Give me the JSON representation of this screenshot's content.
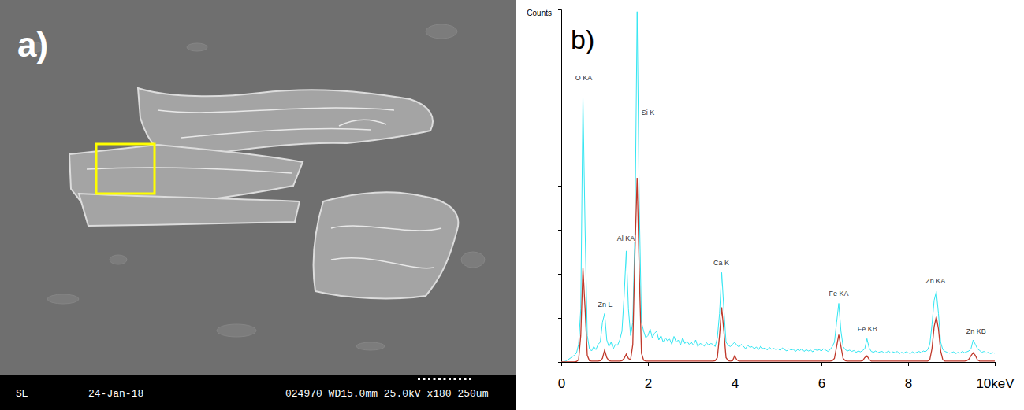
{
  "image_panel": {
    "panel_label": "a)",
    "info_bar": [
      "SE",
      "24-Jan-18",
      "024970 WD15.0mm 25.0kV x180 250um"
    ]
  },
  "chart_data": {
    "type": "line",
    "panel_label": "b)",
    "y_label": "Counts",
    "xlim": [
      0,
      10
    ],
    "ylim": [
      0,
      800
    ],
    "xticks": [
      0,
      2,
      4,
      6,
      8,
      {
        "value": 10,
        "label": "10keV"
      }
    ],
    "yticks": [
      0,
      100,
      200,
      300,
      400,
      500,
      600,
      700,
      800
    ],
    "tick_labels": "x",
    "grid": false,
    "x": [
      0,
      0.05,
      0.1,
      0.15,
      0.2,
      0.25,
      0.3,
      0.35,
      0.4,
      0.45,
      0.5,
      0.55,
      0.6,
      0.65,
      0.7,
      0.75,
      0.8,
      0.85,
      0.9,
      0.95,
      1,
      1.05,
      1.1,
      1.15,
      1.2,
      1.25,
      1.3,
      1.35,
      1.4,
      1.45,
      1.5,
      1.55,
      1.6,
      1.65,
      1.7,
      1.75,
      1.8,
      1.85,
      1.9,
      1.95,
      2,
      2.05,
      2.1,
      2.15,
      2.2,
      2.25,
      2.3,
      2.35,
      2.4,
      2.45,
      2.5,
      2.55,
      2.6,
      2.65,
      2.7,
      2.75,
      2.8,
      2.85,
      2.9,
      2.95,
      3,
      3.05,
      3.1,
      3.15,
      3.2,
      3.25,
      3.3,
      3.35,
      3.4,
      3.45,
      3.5,
      3.55,
      3.6,
      3.65,
      3.7,
      3.75,
      3.8,
      3.85,
      3.9,
      3.95,
      4,
      4.05,
      4.1,
      4.15,
      4.2,
      4.25,
      4.3,
      4.35,
      4.4,
      4.45,
      4.5,
      4.55,
      4.6,
      4.65,
      4.7,
      4.75,
      4.8,
      4.85,
      4.9,
      4.95,
      5,
      5.05,
      5.1,
      5.15,
      5.2,
      5.25,
      5.3,
      5.35,
      5.4,
      5.45,
      5.5,
      5.55,
      5.6,
      5.65,
      5.7,
      5.75,
      5.8,
      5.85,
      5.9,
      5.95,
      6,
      6.05,
      6.1,
      6.15,
      6.2,
      6.25,
      6.3,
      6.35,
      6.4,
      6.45,
      6.5,
      6.55,
      6.6,
      6.65,
      6.7,
      6.75,
      6.8,
      6.85,
      6.9,
      6.95,
      7,
      7.05,
      7.1,
      7.15,
      7.2,
      7.25,
      7.3,
      7.35,
      7.4,
      7.45,
      7.5,
      7.55,
      7.6,
      7.65,
      7.7,
      7.75,
      7.8,
      7.85,
      7.9,
      7.95,
      8,
      8.05,
      8.1,
      8.15,
      8.2,
      8.25,
      8.3,
      8.35,
      8.4,
      8.45,
      8.5,
      8.55,
      8.6,
      8.65,
      8.7,
      8.75,
      8.8,
      8.85,
      8.9,
      8.95,
      9,
      9.05,
      9.1,
      9.15,
      9.2,
      9.25,
      9.3,
      9.35,
      9.4,
      9.45,
      9.5,
      9.55,
      9.6,
      9.65,
      9.7,
      9.75,
      9.8,
      9.85,
      9.9,
      9.95,
      10
    ],
    "series": [
      {
        "color": "#33e6f2",
        "values": [
          0,
          0,
          2,
          5,
          8,
          12,
          15,
          20,
          40,
          120,
          600,
          300,
          60,
          30,
          25,
          35,
          28,
          40,
          45,
          90,
          110,
          50,
          35,
          45,
          30,
          40,
          38,
          50,
          70,
          150,
          252,
          120,
          60,
          90,
          300,
          795,
          350,
          90,
          70,
          55,
          60,
          75,
          55,
          65,
          70,
          50,
          60,
          45,
          55,
          48,
          52,
          40,
          58,
          45,
          50,
          38,
          55,
          42,
          47,
          40,
          45,
          38,
          50,
          35,
          42,
          40,
          36,
          44,
          38,
          42,
          40,
          35,
          55,
          110,
          203,
          120,
          45,
          38,
          35,
          40,
          45,
          38,
          34,
          40,
          36,
          30,
          38,
          33,
          35,
          30,
          34,
          28,
          36,
          30,
          32,
          27,
          33,
          29,
          31,
          28,
          30,
          26,
          32,
          28,
          25,
          30,
          27,
          29,
          24,
          28,
          26,
          30,
          24,
          28,
          25,
          27,
          23,
          29,
          26,
          28,
          25,
          30,
          27,
          24,
          28,
          35,
          45,
          90,
          133,
          70,
          35,
          28,
          25,
          27,
          24,
          26,
          22,
          25,
          23,
          26,
          30,
          53,
          32,
          24,
          22,
          25,
          21,
          23,
          24,
          20,
          22,
          25,
          20,
          23,
          21,
          24,
          19,
          22,
          20,
          23,
          21,
          19,
          23,
          20,
          22,
          24,
          21,
          25,
          23,
          28,
          40,
          85,
          140,
          160,
          110,
          45,
          28,
          24,
          22,
          20,
          21,
          23,
          19,
          22,
          20,
          24,
          21,
          23,
          25,
          30,
          50,
          40,
          30,
          26,
          22,
          24,
          20,
          22,
          19,
          21,
          20
        ]
      },
      {
        "color": "#c0392b",
        "values": [
          0,
          0,
          0,
          0,
          0,
          0,
          0,
          1,
          5,
          60,
          213,
          120,
          15,
          3,
          2,
          2,
          2,
          2,
          3,
          8,
          27,
          10,
          3,
          2,
          2,
          2,
          2,
          2,
          3,
          8,
          18,
          8,
          5,
          40,
          250,
          418,
          200,
          20,
          4,
          2,
          2,
          2,
          2,
          2,
          2,
          2,
          2,
          2,
          2,
          2,
          2,
          2,
          2,
          2,
          2,
          2,
          2,
          2,
          2,
          2,
          2,
          2,
          2,
          2,
          2,
          2,
          2,
          2,
          2,
          2,
          2,
          3,
          10,
          60,
          124,
          70,
          10,
          3,
          2,
          3,
          14,
          5,
          2,
          2,
          2,
          2,
          2,
          2,
          2,
          2,
          2,
          2,
          2,
          2,
          2,
          2,
          2,
          2,
          2,
          2,
          2,
          2,
          2,
          2,
          2,
          2,
          2,
          2,
          2,
          2,
          2,
          2,
          2,
          2,
          2,
          2,
          2,
          2,
          2,
          2,
          2,
          2,
          2,
          2,
          2,
          3,
          8,
          35,
          62,
          35,
          8,
          3,
          2,
          2,
          2,
          2,
          2,
          2,
          2,
          3,
          10,
          14,
          6,
          2,
          2,
          2,
          2,
          2,
          2,
          2,
          2,
          2,
          2,
          2,
          2,
          2,
          2,
          2,
          2,
          2,
          2,
          2,
          2,
          2,
          2,
          2,
          2,
          2,
          2,
          2,
          5,
          30,
          80,
          103,
          75,
          25,
          5,
          2,
          2,
          2,
          2,
          2,
          2,
          2,
          2,
          2,
          2,
          3,
          6,
          14,
          21,
          15,
          5,
          2,
          2,
          2,
          2,
          2,
          2,
          2,
          2
        ]
      }
    ],
    "annotations": [
      {
        "text": "O KA",
        "x": 0.52,
        "y": 640
      },
      {
        "text": "Zn L",
        "x": 1.01,
        "y": 125
      },
      {
        "text": "Al KA",
        "x": 1.49,
        "y": 275
      },
      {
        "text": "Si K",
        "x": 2.0,
        "y": 560
      },
      {
        "text": "Ca K",
        "x": 3.69,
        "y": 220
      },
      {
        "text": "Fe KA",
        "x": 6.4,
        "y": 150
      },
      {
        "text": "Fe KB",
        "x": 7.06,
        "y": 70
      },
      {
        "text": "Zn KA",
        "x": 8.63,
        "y": 178
      },
      {
        "text": "Zn KB",
        "x": 9.57,
        "y": 65
      }
    ]
  }
}
